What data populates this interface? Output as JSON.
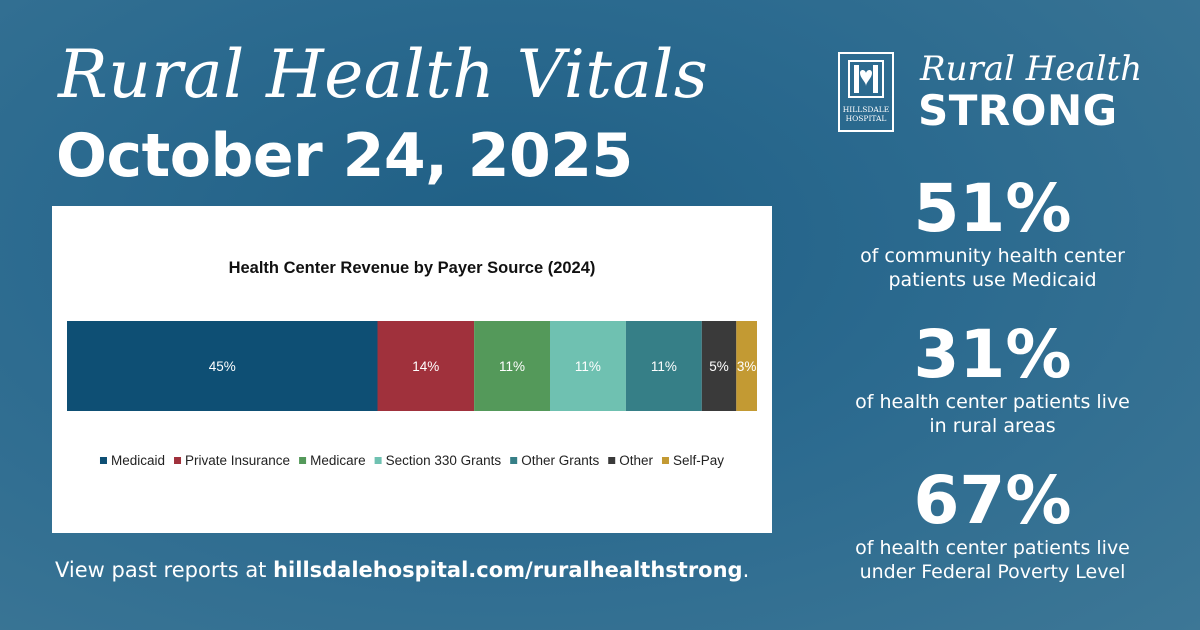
{
  "header": {
    "title": "Rural Health Vitals",
    "date": "October 24, 2025"
  },
  "footer": {
    "prefix": "View past reports at ",
    "link": "hillsdalehospital.com/ruralhealthstrong",
    "suffix": "."
  },
  "brand": {
    "logo_line1": "HILLSDALE",
    "logo_line2": "HOSPITAL",
    "script": "Rural Health",
    "strong": "STRONG"
  },
  "stats": [
    {
      "value": "51%",
      "line1": "of community health center",
      "line2": "patients use Medicaid"
    },
    {
      "value": "31%",
      "line1": "of health center patients live",
      "line2": "in rural areas"
    },
    {
      "value": "67%",
      "line1": "of health center patients live",
      "line2": "under Federal Poverty Level"
    }
  ],
  "colors": {
    "Medicaid": "#0e4f74",
    "Private Insurance": "#a0313c",
    "Medicare": "#54995a",
    "Section 330 Grants": "#6fc1b1",
    "Other Grants": "#367f87",
    "Other": "#3a3a3a",
    "Self-Pay": "#c39a33"
  },
  "chart_data": {
    "type": "bar",
    "stacked": true,
    "orientation": "horizontal",
    "title": "Health Center Revenue by Payer Source (2024)",
    "series": [
      {
        "name": "Medicaid",
        "value": 45,
        "label": "45%"
      },
      {
        "name": "Private Insurance",
        "value": 14,
        "label": "14%"
      },
      {
        "name": "Medicare",
        "value": 11,
        "label": "11%"
      },
      {
        "name": "Section 330 Grants",
        "value": 11,
        "label": "11%"
      },
      {
        "name": "Other Grants",
        "value": 11,
        "label": "11%"
      },
      {
        "name": "Other",
        "value": 5,
        "label": "5%"
      },
      {
        "name": "Self-Pay",
        "value": 3,
        "label": "3%"
      }
    ],
    "legend": "bottom",
    "grid": false
  }
}
